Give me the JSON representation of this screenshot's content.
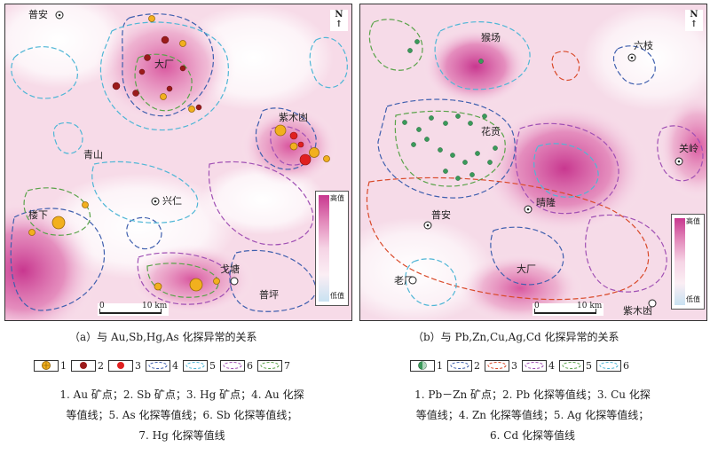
{
  "panel_a": {
    "places": {
      "puan": "普安",
      "dachang": "大厂",
      "qingshan": "青山",
      "zimuyong": "紫木凼",
      "xingren": "兴仁",
      "louxia": "楼下",
      "getang": "戈塘",
      "puping": "普坪"
    },
    "north": "N",
    "scale_zero": "0",
    "scale_label": "10 km",
    "colorbar_high": "高值",
    "colorbar_low": "低值",
    "caption": "（a）与 Au,Sb,Hg,As 化探异常的关系",
    "legend_numbers": [
      "1",
      "2",
      "3",
      "4",
      "5",
      "6",
      "7"
    ],
    "desc_lines": [
      "1. Au 矿点；2. Sb 矿点；3. Hg 矿点；4. Au 化探",
      "等值线；5. As 化探等值线；6. Sb 化探等值线；",
      "7. Hg 化探等值线"
    ]
  },
  "panel_b": {
    "places": {
      "houchang": "猴场",
      "liuzhi": "六枝",
      "huagong": "花贡",
      "guanling": "关岭",
      "qinglong": "晴隆",
      "puan": "普安",
      "dachang": "大厂",
      "laochang": "老厂",
      "zimuyong": "紫木凼"
    },
    "north": "N",
    "scale_zero": "0",
    "scale_label": "10 km",
    "colorbar_high": "高值",
    "colorbar_low": "低值",
    "caption": "（b）与 Pb,Zn,Cu,Ag,Cd 化探异常的关系",
    "legend_numbers": [
      "1",
      "2",
      "3",
      "4",
      "5",
      "6"
    ],
    "desc_lines": [
      "1. Pb－Zn 矿点；2. Pb 化探等值线；3. Cu 化探",
      "等值线；4. Zn 化探等值线；5. Ag 化探等值线；",
      "6. Cd 化探等值线"
    ]
  },
  "colors": {
    "anomaly_high": "#c8378f",
    "anomaly_low": "#fdf2f7",
    "au_point": "#f2b01e",
    "sb_point": "#9b1b1b",
    "hg_point": "#e02020",
    "pbzn_point": "#3a9a5a",
    "contour_blue": "#3f5fae",
    "contour_cyan": "#4fb6d6",
    "contour_purple": "#a050b4",
    "contour_green": "#5aa34a",
    "contour_red": "#d94a2a"
  }
}
